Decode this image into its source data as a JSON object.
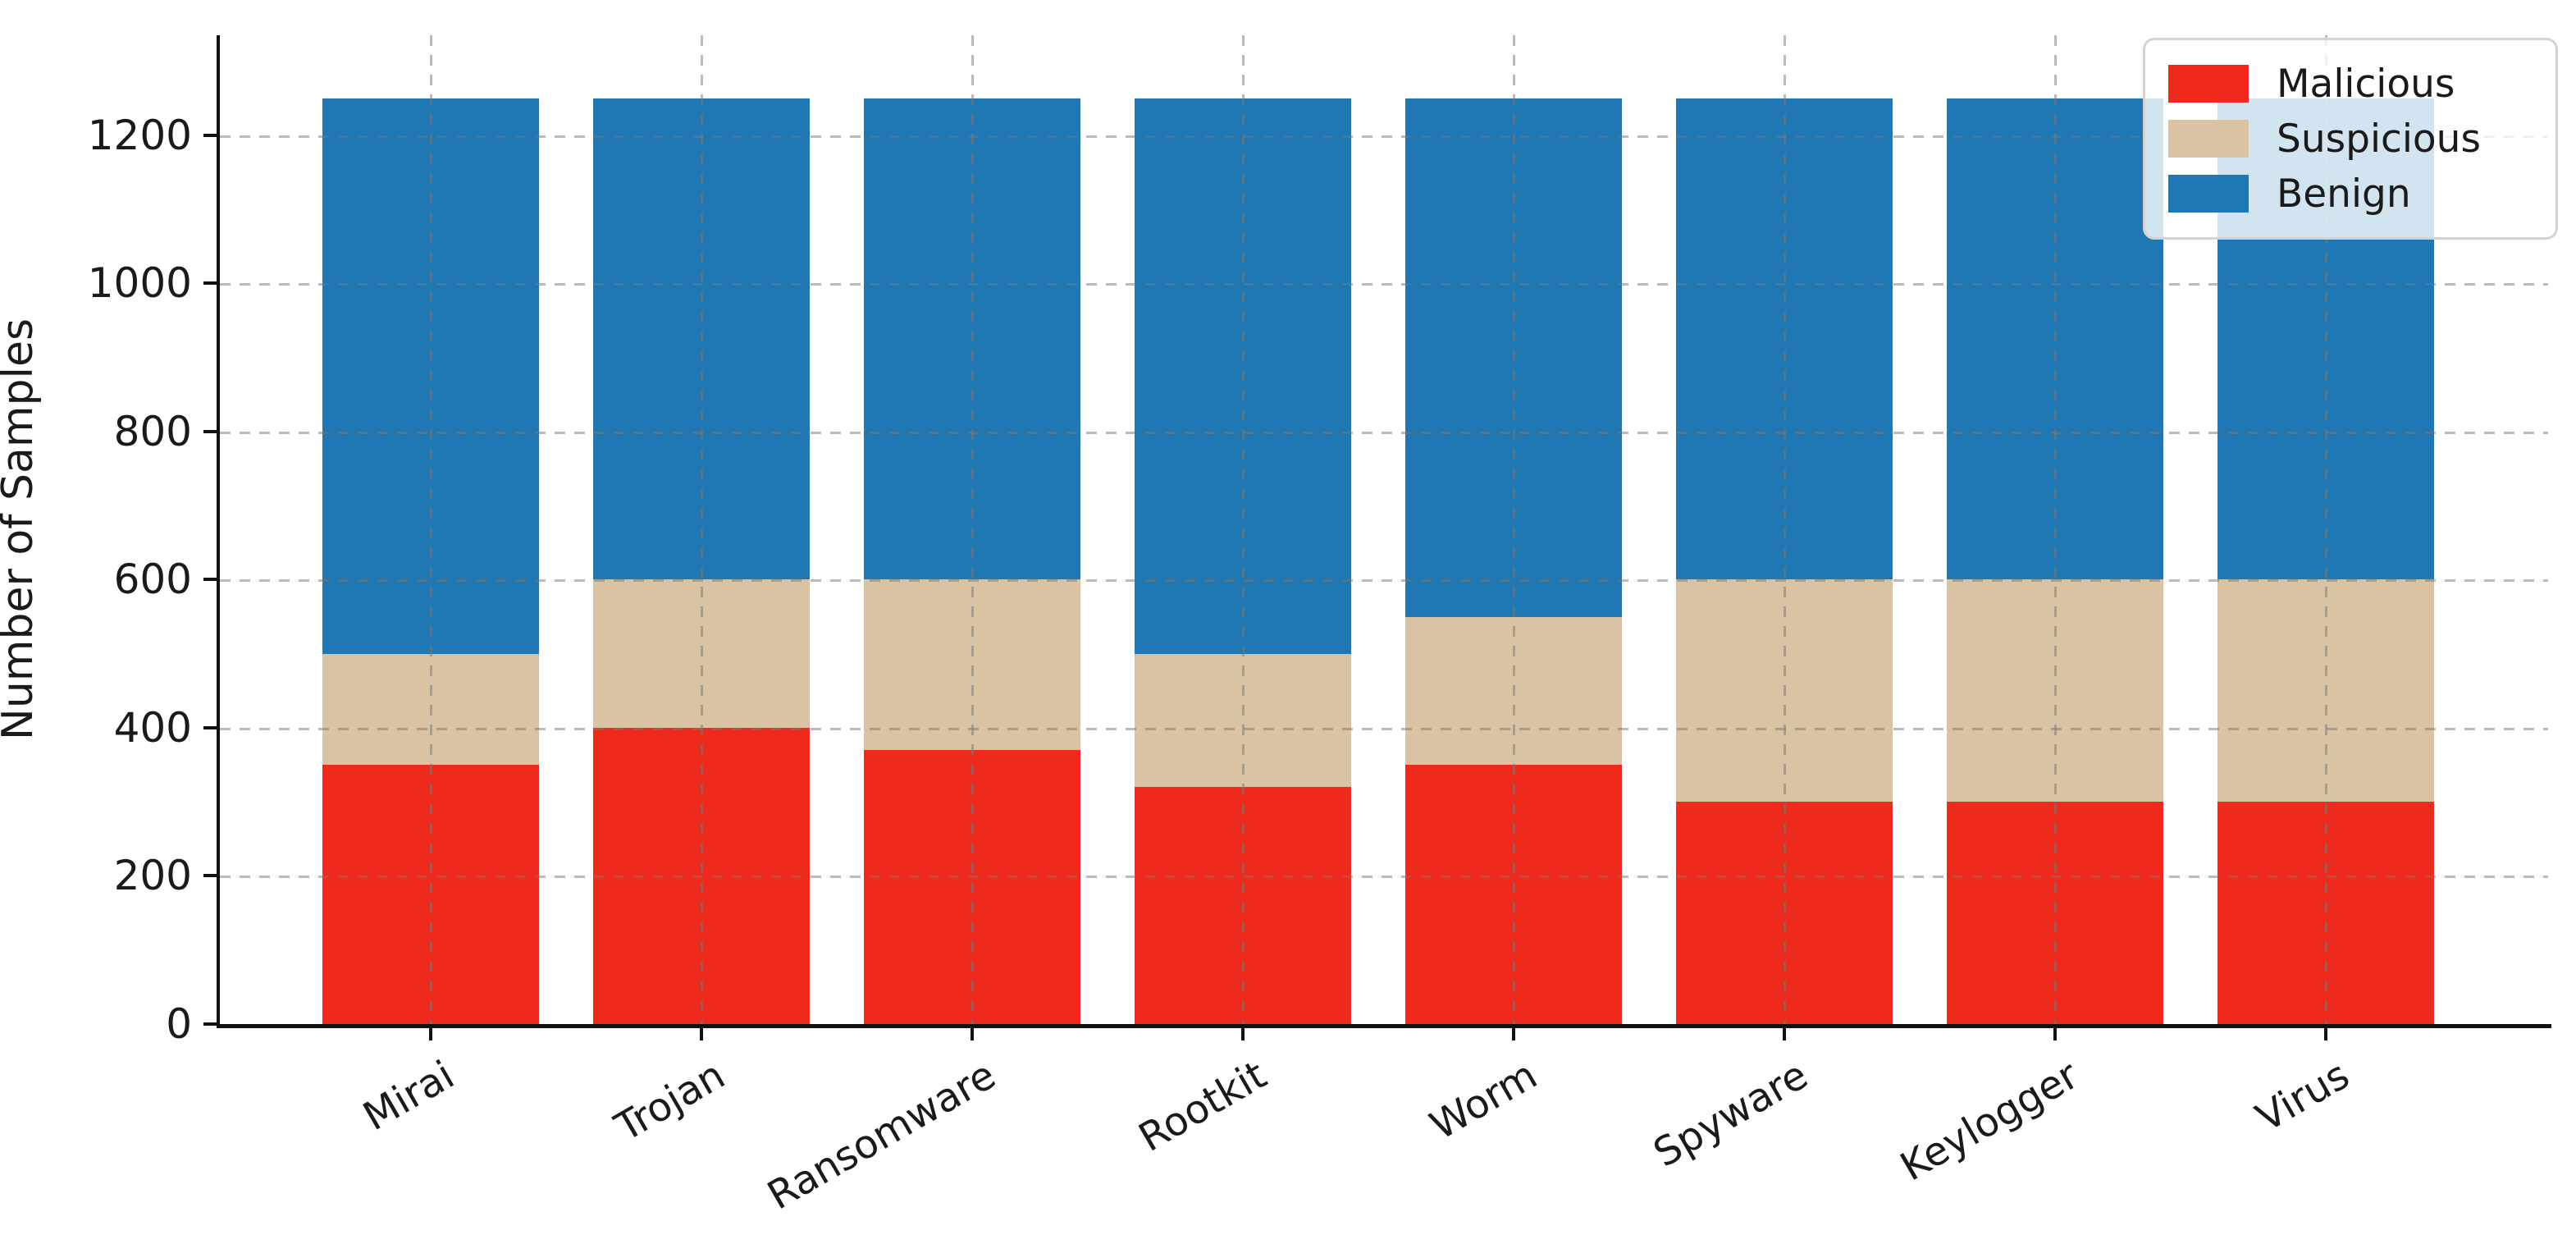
{
  "chart_data": {
    "type": "bar",
    "stacked": true,
    "title": "",
    "xlabel": "",
    "ylabel": "Number of Samples",
    "categories": [
      "Mirai",
      "Trojan",
      "Ransomware",
      "Rootkit",
      "Worm",
      "Spyware",
      "Keylogger",
      "Virus"
    ],
    "series": [
      {
        "name": "Malicious",
        "color": "#ee2a1d",
        "values": [
          350,
          400,
          370,
          320,
          350,
          300,
          300,
          300
        ]
      },
      {
        "name": "Suspicious",
        "color": "#d9c3a2",
        "values": [
          150,
          200,
          230,
          180,
          200,
          300,
          300,
          300
        ]
      },
      {
        "name": "Benign",
        "color": "#1f77b4",
        "values": [
          750,
          650,
          650,
          750,
          700,
          650,
          650,
          650
        ]
      }
    ],
    "total_per_category": 1250,
    "ylim": [
      0,
      1335
    ],
    "yticks": [
      0,
      200,
      400,
      600,
      800,
      1000,
      1200
    ],
    "grid": "dashed gray, horizontal and vertical (at bar centers), drawn above bars",
    "legend_position": "upper right",
    "xtick_rotation_deg": 30
  },
  "colors": {
    "axis": "#111111",
    "text": "#1a1a1a",
    "grid": "rgba(120,120,120,0.5)",
    "legend_border": "#d3d3d3",
    "legend_background": "rgba(255,255,255,0.8)"
  }
}
